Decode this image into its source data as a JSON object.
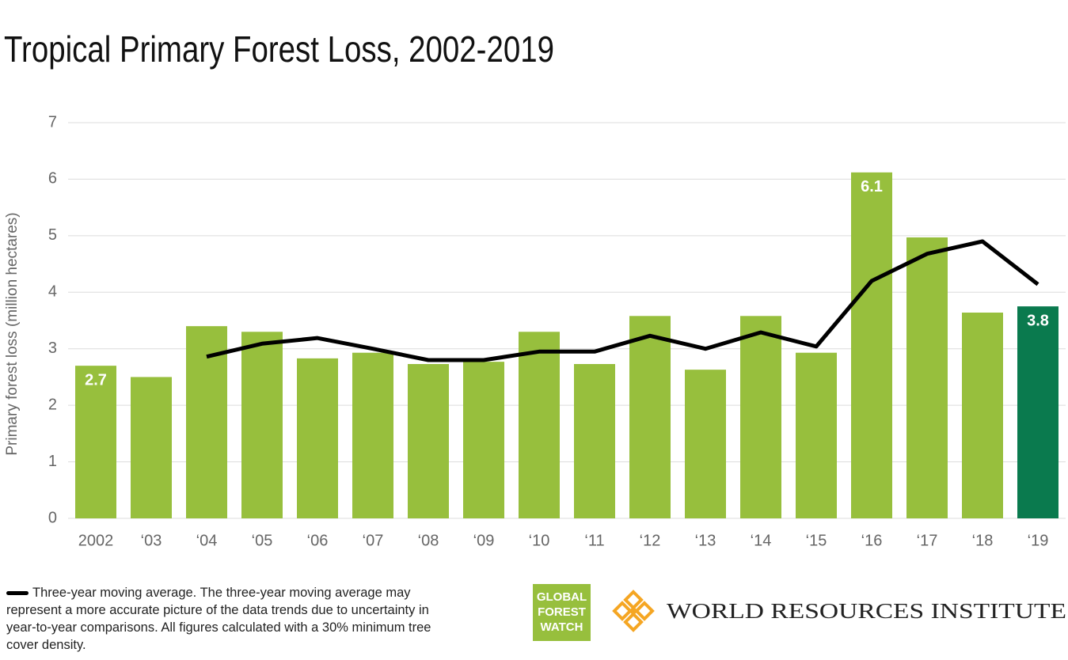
{
  "chart_data": {
    "type": "bar",
    "title": "Tropical Primary Forest Loss, 2002-2019",
    "ylabel": "Primary forest loss (million hectares)",
    "categories": [
      "2002",
      "‘03",
      "‘04",
      "‘05",
      "‘06",
      "‘07",
      "‘08",
      "‘09",
      "‘10",
      "‘11",
      "‘12",
      "‘13",
      "‘14",
      "‘15",
      "‘16",
      "‘17",
      "‘18",
      "‘19"
    ],
    "values": [
      2.7,
      2.5,
      3.4,
      3.3,
      2.83,
      2.93,
      2.73,
      2.77,
      3.3,
      2.73,
      3.58,
      2.63,
      3.58,
      2.93,
      6.12,
      4.97,
      3.64,
      3.75
    ],
    "value_labels": [
      "2.7",
      null,
      null,
      null,
      null,
      null,
      null,
      null,
      null,
      null,
      null,
      null,
      null,
      null,
      "6.1",
      null,
      null,
      "3.8"
    ],
    "colors": [
      "#97bf3d",
      "#97bf3d",
      "#97bf3d",
      "#97bf3d",
      "#97bf3d",
      "#97bf3d",
      "#97bf3d",
      "#97bf3d",
      "#97bf3d",
      "#97bf3d",
      "#97bf3d",
      "#97bf3d",
      "#97bf3d",
      "#97bf3d",
      "#97bf3d",
      "#97bf3d",
      "#97bf3d",
      "#0a7a4e"
    ],
    "overlay": {
      "type": "line",
      "name": "Three-year moving average.",
      "color": "#000000",
      "values": [
        null,
        null,
        2.86,
        3.09,
        3.19,
        3.0,
        2.8,
        2.8,
        2.95,
        2.95,
        3.23,
        3.0,
        3.29,
        3.04,
        4.2,
        4.68,
        4.9,
        4.14
      ]
    },
    "note": "The three-year moving average may represent a more accurate picture of the data trends due to uncertainty in year-to-year comparisons. All figures calculated with a 30% minimum tree cover density.",
    "ylim": [
      0,
      7
    ],
    "yticks": [
      0,
      1,
      2,
      3,
      4,
      5,
      6,
      7
    ],
    "grid": true,
    "logos": {
      "gfw": [
        "GLOBAL",
        "FOREST",
        "WATCH"
      ],
      "wri": "WORLD RESOURCES INSTITUTE"
    }
  }
}
